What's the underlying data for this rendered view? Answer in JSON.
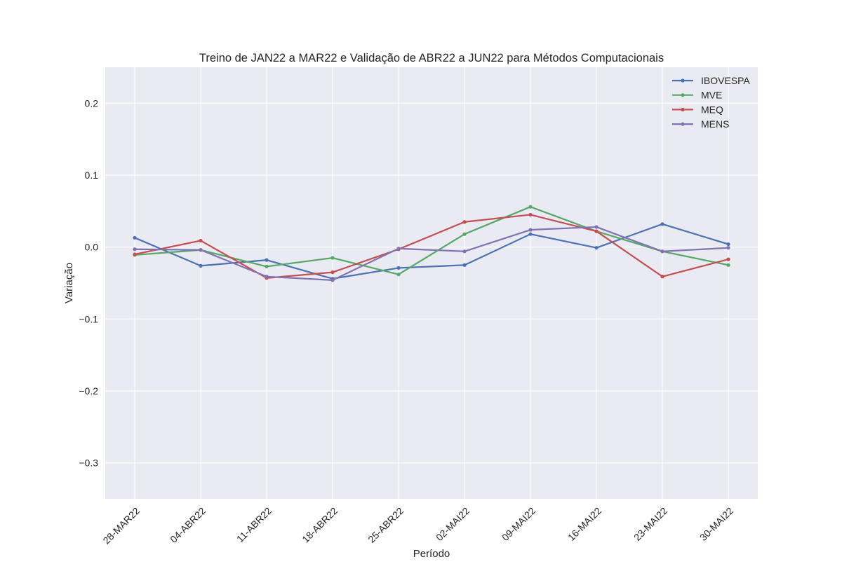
{
  "chart_data": {
    "type": "line",
    "title": "Treino de JAN22 a MAR22 e Validação de ABR22 a JUN22 para Métodos Computacionais",
    "xlabel": "Período",
    "ylabel": "Variação",
    "categories": [
      "28-MAR22",
      "04-ABR22",
      "11-ABR22",
      "18-ABR22",
      "25-ABR22",
      "02-MAI22",
      "09-MAI22",
      "16-MAI22",
      "23-MAI22",
      "30-MAI22"
    ],
    "ylim": [
      -0.35,
      0.25
    ],
    "yticks": [
      0.2,
      0.1,
      0.0,
      -0.1,
      -0.2,
      -0.3
    ],
    "ytick_labels": [
      "0.2",
      "0.1",
      "0.0",
      "−0.1",
      "−0.2",
      "−0.3"
    ],
    "grid": true,
    "legend_position": "top-right",
    "series": [
      {
        "name": "IBOVESPA",
        "color": "#4c72b0",
        "values": [
          0.013,
          -0.026,
          -0.018,
          -0.044,
          -0.029,
          -0.025,
          0.018,
          -0.001,
          0.032,
          0.004
        ]
      },
      {
        "name": "MVE",
        "color": "#55a868",
        "values": [
          -0.011,
          -0.004,
          -0.027,
          -0.015,
          -0.038,
          0.018,
          0.056,
          0.022,
          -0.006,
          -0.025
        ]
      },
      {
        "name": "MEQ",
        "color": "#c44e52",
        "values": [
          -0.01,
          0.009,
          -0.043,
          -0.035,
          -0.003,
          0.035,
          0.045,
          0.022,
          -0.041,
          -0.017
        ]
      },
      {
        "name": "MENS",
        "color": "#8172b2",
        "values": [
          -0.003,
          -0.004,
          -0.041,
          -0.046,
          -0.002,
          -0.006,
          0.024,
          0.028,
          -0.006,
          -0.001
        ]
      }
    ]
  }
}
